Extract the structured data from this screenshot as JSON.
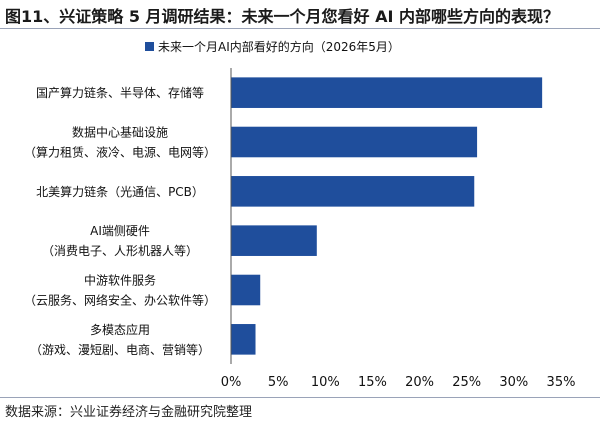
{
  "title": "图11、兴证策略 5 月调研结果：未来一个月您看好 AI 内部哪些方向的表现？",
  "source": "数据来源：兴业证券经济与金融研究院整理",
  "chart_data": {
    "type": "bar",
    "orientation": "horizontal",
    "categories": [
      [
        "国产算力链条、半导体、存储等"
      ],
      [
        "数据中心基础设施",
        "（算力租赁、液冷、电源、电网等）"
      ],
      [
        "北美算力链条（光通信、PCB）"
      ],
      [
        "AI端侧硬件",
        "（消费电子、人形机器人等）"
      ],
      [
        "中游软件服务",
        "（云服务、网络安全、办公软件等）"
      ],
      [
        "多模态应用",
        "（游戏、漫短剧、电商、营销等）"
      ]
    ],
    "series": [
      {
        "name": "未来一个月AI内部看好的方向（2026年5月）",
        "values": [
          33.0,
          26.1,
          25.8,
          9.1,
          3.1,
          2.6
        ],
        "color": "#1f4e9c"
      }
    ],
    "x_ticks": [
      "0%",
      "5%",
      "10%",
      "15%",
      "20%",
      "25%",
      "30%",
      "35%"
    ],
    "xlim": [
      0,
      35
    ],
    "grid": false,
    "legend_position": "top"
  }
}
